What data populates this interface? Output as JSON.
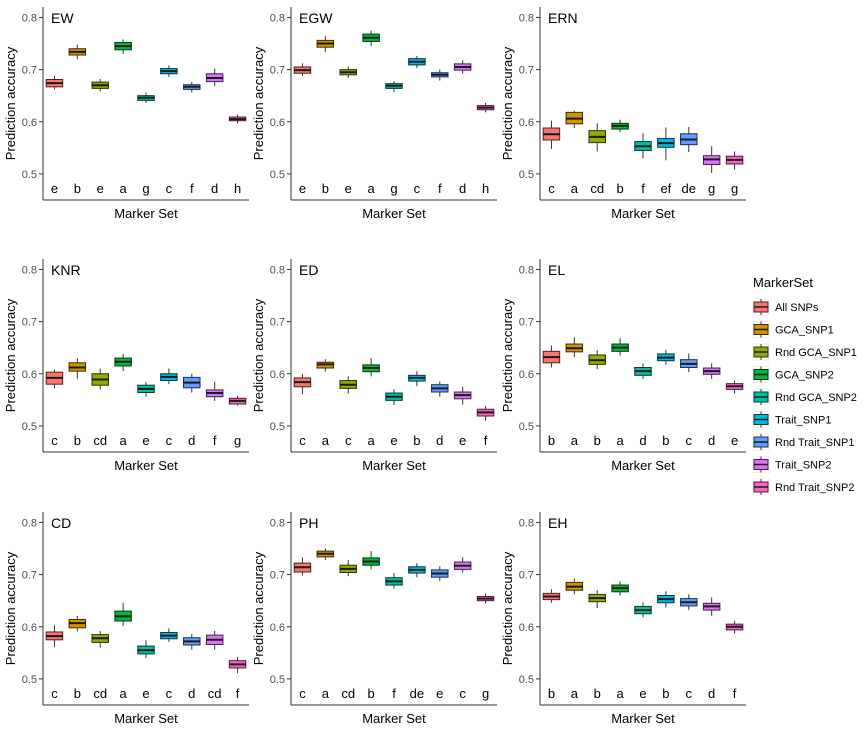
{
  "legend": {
    "title": "MarkerSet",
    "items": [
      "All SNPs",
      "GCA_SNP1",
      "Rnd GCA_SNP1",
      "GCA_SNP2",
      "Rnd GCA_SNP2",
      "Trait_SNP1",
      "Rnd Trait_SNP1",
      "Trait_SNP2",
      "Rnd Trait_SNP2"
    ]
  },
  "colors": [
    "#F8766D",
    "#D39200",
    "#93AA00",
    "#00BA38",
    "#00C19F",
    "#00B9E3",
    "#619CFF",
    "#DB72FB",
    "#FF61C3"
  ],
  "chart_data": [
    {
      "type": "box",
      "title": "EW",
      "xlabel": "Marker Set",
      "ylabel": "Prediction accuracy",
      "ylim": [
        0.45,
        0.82
      ],
      "yticks": [
        0.5,
        0.6,
        0.7,
        0.8
      ],
      "ytick_labels": [
        "0.5",
        "0.6",
        "0.7",
        "0.8"
      ],
      "letters": [
        "e",
        "b",
        "e",
        "a",
        "g",
        "c",
        "f",
        "d",
        "h"
      ],
      "boxes": [
        {
          "min": 0.662,
          "q1": 0.667,
          "median": 0.674,
          "q3": 0.681,
          "max": 0.688
        },
        {
          "min": 0.72,
          "q1": 0.728,
          "median": 0.734,
          "q3": 0.74,
          "max": 0.748
        },
        {
          "min": 0.658,
          "q1": 0.664,
          "median": 0.67,
          "q3": 0.676,
          "max": 0.682
        },
        {
          "min": 0.73,
          "q1": 0.738,
          "median": 0.745,
          "q3": 0.752,
          "max": 0.758
        },
        {
          "min": 0.636,
          "q1": 0.641,
          "median": 0.646,
          "q3": 0.65,
          "max": 0.656
        },
        {
          "min": 0.686,
          "q1": 0.692,
          "median": 0.697,
          "q3": 0.702,
          "max": 0.708
        },
        {
          "min": 0.656,
          "q1": 0.662,
          "median": 0.667,
          "q3": 0.671,
          "max": 0.676
        },
        {
          "min": 0.668,
          "q1": 0.677,
          "median": 0.684,
          "q3": 0.692,
          "max": 0.702
        },
        {
          "min": 0.597,
          "q1": 0.602,
          "median": 0.605,
          "q3": 0.609,
          "max": 0.614
        }
      ]
    },
    {
      "type": "box",
      "title": "EGW",
      "xlabel": "Marker Set",
      "ylabel": "Prediction accuracy",
      "ylim": [
        0.45,
        0.82
      ],
      "yticks": [
        0.5,
        0.6,
        0.7,
        0.8
      ],
      "ytick_labels": [
        "0.5",
        "0.6",
        "0.7",
        "0.8"
      ],
      "letters": [
        "e",
        "b",
        "e",
        "a",
        "g",
        "c",
        "f",
        "d",
        "h"
      ],
      "boxes": [
        {
          "min": 0.688,
          "q1": 0.693,
          "median": 0.699,
          "q3": 0.705,
          "max": 0.712
        },
        {
          "min": 0.734,
          "q1": 0.743,
          "median": 0.75,
          "q3": 0.756,
          "max": 0.764
        },
        {
          "min": 0.684,
          "q1": 0.69,
          "median": 0.695,
          "q3": 0.7,
          "max": 0.706
        },
        {
          "min": 0.745,
          "q1": 0.754,
          "median": 0.761,
          "q3": 0.768,
          "max": 0.775
        },
        {
          "min": 0.657,
          "q1": 0.664,
          "median": 0.669,
          "q3": 0.673,
          "max": 0.678
        },
        {
          "min": 0.703,
          "q1": 0.709,
          "median": 0.715,
          "q3": 0.721,
          "max": 0.726
        },
        {
          "min": 0.679,
          "q1": 0.686,
          "median": 0.69,
          "q3": 0.694,
          "max": 0.7
        },
        {
          "min": 0.692,
          "q1": 0.699,
          "median": 0.705,
          "q3": 0.711,
          "max": 0.718
        },
        {
          "min": 0.618,
          "q1": 0.623,
          "median": 0.627,
          "q3": 0.631,
          "max": 0.636
        }
      ]
    },
    {
      "type": "box",
      "title": "ERN",
      "xlabel": "Marker Set",
      "ylabel": "Prediction accuracy",
      "ylim": [
        0.45,
        0.82
      ],
      "yticks": [
        0.5,
        0.6,
        0.7,
        0.8
      ],
      "ytick_labels": [
        "0.5",
        "0.6",
        "0.7",
        "0.8"
      ],
      "letters": [
        "c",
        "a",
        "cd",
        "b",
        "f",
        "ef",
        "de",
        "g",
        "g"
      ],
      "boxes": [
        {
          "min": 0.548,
          "q1": 0.565,
          "median": 0.576,
          "q3": 0.588,
          "max": 0.602
        },
        {
          "min": 0.588,
          "q1": 0.596,
          "median": 0.606,
          "q3": 0.618,
          "max": 0.621
        },
        {
          "min": 0.543,
          "q1": 0.56,
          "median": 0.571,
          "q3": 0.583,
          "max": 0.597
        },
        {
          "min": 0.58,
          "q1": 0.586,
          "median": 0.592,
          "q3": 0.597,
          "max": 0.604
        },
        {
          "min": 0.53,
          "q1": 0.545,
          "median": 0.553,
          "q3": 0.562,
          "max": 0.578
        },
        {
          "min": 0.526,
          "q1": 0.551,
          "median": 0.559,
          "q3": 0.568,
          "max": 0.589
        },
        {
          "min": 0.542,
          "q1": 0.556,
          "median": 0.566,
          "q3": 0.577,
          "max": 0.59
        },
        {
          "min": 0.502,
          "q1": 0.518,
          "median": 0.528,
          "q3": 0.535,
          "max": 0.553
        },
        {
          "min": 0.508,
          "q1": 0.519,
          "median": 0.527,
          "q3": 0.534,
          "max": 0.543
        }
      ]
    },
    {
      "type": "box",
      "title": "KNR",
      "xlabel": "Marker Set",
      "ylabel": "Prediction accuracy",
      "ylim": [
        0.45,
        0.82
      ],
      "yticks": [
        0.5,
        0.6,
        0.7,
        0.8
      ],
      "ytick_labels": [
        "0.5",
        "0.6",
        "0.7",
        "0.8"
      ],
      "letters": [
        "c",
        "b",
        "cd",
        "a",
        "e",
        "c",
        "d",
        "f",
        "g"
      ],
      "boxes": [
        {
          "min": 0.572,
          "q1": 0.58,
          "median": 0.592,
          "q3": 0.603,
          "max": 0.608
        },
        {
          "min": 0.59,
          "q1": 0.605,
          "median": 0.612,
          "q3": 0.621,
          "max": 0.63
        },
        {
          "min": 0.57,
          "q1": 0.578,
          "median": 0.589,
          "q3": 0.6,
          "max": 0.61
        },
        {
          "min": 0.605,
          "q1": 0.615,
          "median": 0.623,
          "q3": 0.63,
          "max": 0.638
        },
        {
          "min": 0.556,
          "q1": 0.564,
          "median": 0.571,
          "q3": 0.578,
          "max": 0.584
        },
        {
          "min": 0.58,
          "q1": 0.587,
          "median": 0.594,
          "q3": 0.6,
          "max": 0.61
        },
        {
          "min": 0.564,
          "q1": 0.573,
          "median": 0.583,
          "q3": 0.593,
          "max": 0.6
        },
        {
          "min": 0.548,
          "q1": 0.556,
          "median": 0.563,
          "q3": 0.569,
          "max": 0.585
        },
        {
          "min": 0.539,
          "q1": 0.542,
          "median": 0.548,
          "q3": 0.553,
          "max": 0.558
        }
      ]
    },
    {
      "type": "box",
      "title": "ED",
      "xlabel": "Marker Set",
      "ylabel": "Prediction accuracy",
      "ylim": [
        0.45,
        0.82
      ],
      "yticks": [
        0.5,
        0.6,
        0.7,
        0.8
      ],
      "ytick_labels": [
        "0.5",
        "0.6",
        "0.7",
        "0.8"
      ],
      "letters": [
        "c",
        "a",
        "c",
        "a",
        "e",
        "b",
        "d",
        "e",
        "f"
      ],
      "boxes": [
        {
          "min": 0.561,
          "q1": 0.575,
          "median": 0.584,
          "q3": 0.592,
          "max": 0.6
        },
        {
          "min": 0.604,
          "q1": 0.611,
          "median": 0.618,
          "q3": 0.622,
          "max": 0.628
        },
        {
          "min": 0.562,
          "q1": 0.572,
          "median": 0.579,
          "q3": 0.587,
          "max": 0.595
        },
        {
          "min": 0.595,
          "q1": 0.604,
          "median": 0.611,
          "q3": 0.617,
          "max": 0.63
        },
        {
          "min": 0.54,
          "q1": 0.549,
          "median": 0.556,
          "q3": 0.563,
          "max": 0.57
        },
        {
          "min": 0.576,
          "q1": 0.586,
          "median": 0.592,
          "q3": 0.597,
          "max": 0.605
        },
        {
          "min": 0.556,
          "q1": 0.565,
          "median": 0.572,
          "q3": 0.579,
          "max": 0.585
        },
        {
          "min": 0.541,
          "q1": 0.552,
          "median": 0.559,
          "q3": 0.565,
          "max": 0.575
        },
        {
          "min": 0.51,
          "q1": 0.519,
          "median": 0.526,
          "q3": 0.532,
          "max": 0.538
        }
      ]
    },
    {
      "type": "box",
      "title": "EL",
      "xlabel": "Marker Set",
      "ylabel": "Prediction accuracy",
      "ylim": [
        0.45,
        0.82
      ],
      "yticks": [
        0.5,
        0.6,
        0.7,
        0.8
      ],
      "ytick_labels": [
        "0.5",
        "0.6",
        "0.7",
        "0.8"
      ],
      "letters": [
        "b",
        "a",
        "b",
        "a",
        "d",
        "b",
        "c",
        "d",
        "e"
      ],
      "boxes": [
        {
          "min": 0.612,
          "q1": 0.621,
          "median": 0.632,
          "q3": 0.643,
          "max": 0.654
        },
        {
          "min": 0.632,
          "q1": 0.642,
          "median": 0.649,
          "q3": 0.657,
          "max": 0.67
        },
        {
          "min": 0.609,
          "q1": 0.618,
          "median": 0.626,
          "q3": 0.636,
          "max": 0.645
        },
        {
          "min": 0.635,
          "q1": 0.643,
          "median": 0.65,
          "q3": 0.657,
          "max": 0.668
        },
        {
          "min": 0.59,
          "q1": 0.597,
          "median": 0.605,
          "q3": 0.612,
          "max": 0.62
        },
        {
          "min": 0.617,
          "q1": 0.625,
          "median": 0.631,
          "q3": 0.638,
          "max": 0.646
        },
        {
          "min": 0.603,
          "q1": 0.612,
          "median": 0.619,
          "q3": 0.627,
          "max": 0.639
        },
        {
          "min": 0.59,
          "q1": 0.599,
          "median": 0.605,
          "q3": 0.611,
          "max": 0.62
        },
        {
          "min": 0.562,
          "q1": 0.57,
          "median": 0.576,
          "q3": 0.581,
          "max": 0.587
        }
      ]
    },
    {
      "type": "box",
      "title": "CD",
      "xlabel": "Marker Set",
      "ylabel": "Prediction accuracy",
      "ylim": [
        0.45,
        0.82
      ],
      "yticks": [
        0.5,
        0.6,
        0.7,
        0.8
      ],
      "ytick_labels": [
        "0.5",
        "0.6",
        "0.7",
        "0.8"
      ],
      "letters": [
        "c",
        "b",
        "cd",
        "a",
        "e",
        "c",
        "d",
        "cd",
        "f"
      ],
      "boxes": [
        {
          "min": 0.561,
          "q1": 0.575,
          "median": 0.582,
          "q3": 0.59,
          "max": 0.603
        },
        {
          "min": 0.591,
          "q1": 0.598,
          "median": 0.607,
          "q3": 0.614,
          "max": 0.621
        },
        {
          "min": 0.56,
          "q1": 0.57,
          "median": 0.578,
          "q3": 0.585,
          "max": 0.592
        },
        {
          "min": 0.601,
          "q1": 0.611,
          "median": 0.62,
          "q3": 0.63,
          "max": 0.646
        },
        {
          "min": 0.54,
          "q1": 0.548,
          "median": 0.555,
          "q3": 0.563,
          "max": 0.574
        },
        {
          "min": 0.571,
          "q1": 0.577,
          "median": 0.583,
          "q3": 0.589,
          "max": 0.597
        },
        {
          "min": 0.556,
          "q1": 0.565,
          "median": 0.572,
          "q3": 0.579,
          "max": 0.586
        },
        {
          "min": 0.556,
          "q1": 0.566,
          "median": 0.575,
          "q3": 0.584,
          "max": 0.592
        },
        {
          "min": 0.511,
          "q1": 0.521,
          "median": 0.528,
          "q3": 0.535,
          "max": 0.542
        }
      ]
    },
    {
      "type": "box",
      "title": "PH",
      "xlabel": "Marker Set",
      "ylabel": "Prediction accuracy",
      "ylim": [
        0.45,
        0.82
      ],
      "yticks": [
        0.5,
        0.6,
        0.7,
        0.8
      ],
      "ytick_labels": [
        "0.5",
        "0.6",
        "0.7",
        "0.8"
      ],
      "letters": [
        "c",
        "a",
        "cd",
        "b",
        "f",
        "de",
        "e",
        "c",
        "g"
      ],
      "boxes": [
        {
          "min": 0.698,
          "q1": 0.705,
          "median": 0.714,
          "q3": 0.722,
          "max": 0.733
        },
        {
          "min": 0.728,
          "q1": 0.734,
          "median": 0.74,
          "q3": 0.745,
          "max": 0.75
        },
        {
          "min": 0.697,
          "q1": 0.704,
          "median": 0.711,
          "q3": 0.718,
          "max": 0.728
        },
        {
          "min": 0.71,
          "q1": 0.718,
          "median": 0.725,
          "q3": 0.732,
          "max": 0.745
        },
        {
          "min": 0.673,
          "q1": 0.68,
          "median": 0.687,
          "q3": 0.694,
          "max": 0.703
        },
        {
          "min": 0.695,
          "q1": 0.703,
          "median": 0.709,
          "q3": 0.715,
          "max": 0.722
        },
        {
          "min": 0.688,
          "q1": 0.695,
          "median": 0.702,
          "q3": 0.709,
          "max": 0.716
        },
        {
          "min": 0.704,
          "q1": 0.71,
          "median": 0.717,
          "q3": 0.724,
          "max": 0.733
        },
        {
          "min": 0.645,
          "q1": 0.65,
          "median": 0.654,
          "q3": 0.658,
          "max": 0.664
        }
      ]
    },
    {
      "type": "box",
      "title": "EH",
      "xlabel": "Marker Set",
      "ylabel": "Prediction accuracy",
      "ylim": [
        0.45,
        0.82
      ],
      "yticks": [
        0.5,
        0.6,
        0.7,
        0.8
      ],
      "ytick_labels": [
        "0.5",
        "0.6",
        "0.7",
        "0.8"
      ],
      "letters": [
        "b",
        "a",
        "b",
        "a",
        "e",
        "b",
        "c",
        "d",
        "f"
      ],
      "boxes": [
        {
          "min": 0.646,
          "q1": 0.652,
          "median": 0.658,
          "q3": 0.664,
          "max": 0.672
        },
        {
          "min": 0.662,
          "q1": 0.67,
          "median": 0.677,
          "q3": 0.685,
          "max": 0.692
        },
        {
          "min": 0.636,
          "q1": 0.648,
          "median": 0.655,
          "q3": 0.662,
          "max": 0.67
        },
        {
          "min": 0.66,
          "q1": 0.667,
          "median": 0.674,
          "q3": 0.68,
          "max": 0.687
        },
        {
          "min": 0.618,
          "q1": 0.625,
          "median": 0.632,
          "q3": 0.639,
          "max": 0.647
        },
        {
          "min": 0.637,
          "q1": 0.646,
          "median": 0.653,
          "q3": 0.66,
          "max": 0.668
        },
        {
          "min": 0.632,
          "q1": 0.64,
          "median": 0.647,
          "q3": 0.654,
          "max": 0.662
        },
        {
          "min": 0.621,
          "q1": 0.632,
          "median": 0.639,
          "q3": 0.645,
          "max": 0.656
        },
        {
          "min": 0.587,
          "q1": 0.594,
          "median": 0.6,
          "q3": 0.605,
          "max": 0.611
        }
      ]
    }
  ]
}
